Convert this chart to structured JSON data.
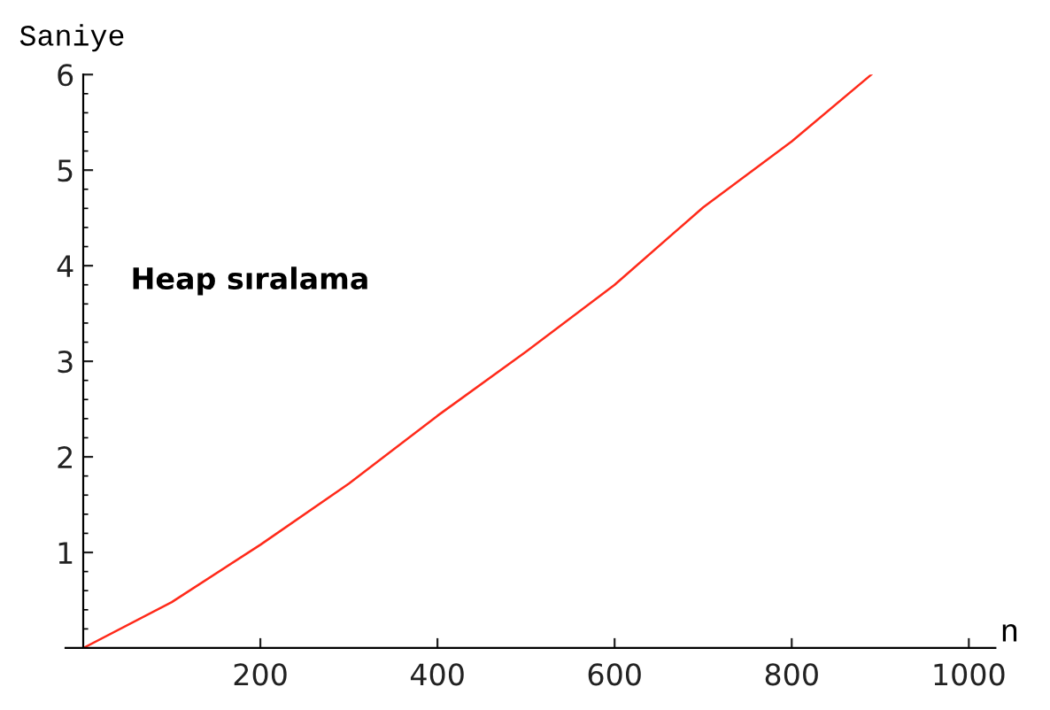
{
  "chart_data": {
    "type": "line",
    "x": [
      0,
      100,
      200,
      300,
      400,
      500,
      600,
      700,
      800,
      890
    ],
    "series": [
      {
        "color": "#ff2a1a",
        "values": [
          0,
          0.48,
          1.08,
          1.72,
          2.43,
          3.1,
          3.8,
          4.61,
          5.3,
          6.0
        ]
      }
    ],
    "xlabel": "n",
    "ylabel": "Saniye",
    "annotations": [
      "Heap sıralama"
    ],
    "xlim": [
      -20,
      1030
    ],
    "ylim": [
      0,
      6
    ],
    "xticks": [
      200,
      400,
      600,
      800,
      1000
    ],
    "yticks": [
      1,
      2,
      3,
      4,
      5,
      6
    ],
    "grid": false,
    "legend": false,
    "marker": "none",
    "line_style": "solid"
  }
}
